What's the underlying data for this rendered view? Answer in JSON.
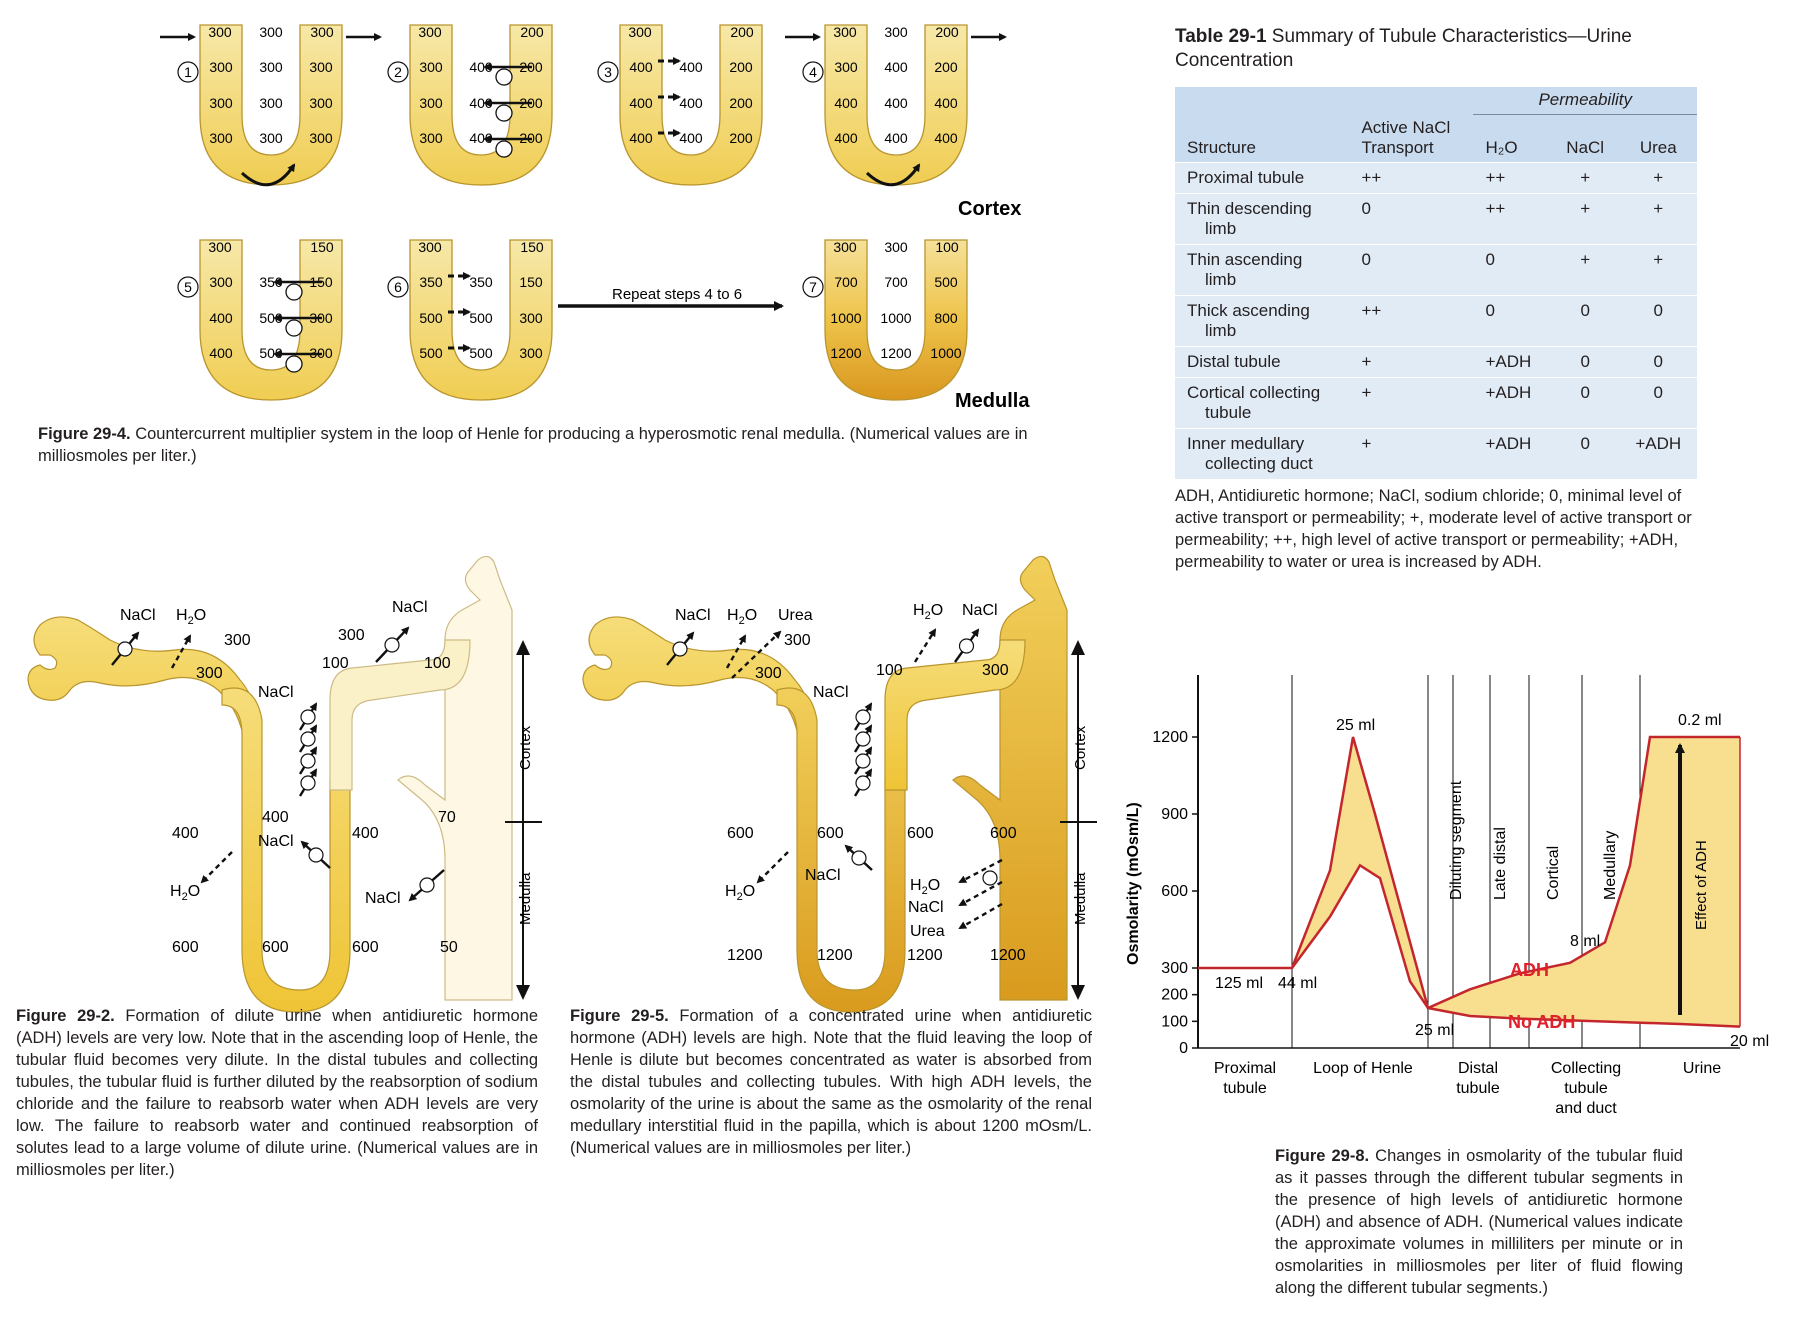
{
  "labels": {
    "cortex": "Cortex",
    "medulla": "Medulla",
    "repeat": "Repeat steps 4 to 6",
    "nacl": "NaCl",
    "h2o_main": "H",
    "h2o_sub": "2",
    "h2o_end": "O",
    "urea": "Urea",
    "cortex_small": "Cortex",
    "medulla_small": "Medulla"
  },
  "fig29_4": {
    "caption_bold": "Figure 29-4.",
    "caption": " Countercurrent multiplier system in the loop of Henle for producing a hyperosmotic renal medulla. (Numerical values are in milliosmoles per liter.)",
    "steps": [
      {
        "num": "1",
        "top": [
          "300",
          "300",
          "300"
        ],
        "left": [
          "300",
          "300",
          "300"
        ],
        "mid": [
          "300",
          "300",
          "300"
        ],
        "right": [
          "300",
          "300",
          "300"
        ]
      },
      {
        "num": "2",
        "top": [
          "300",
          "",
          "200"
        ],
        "left": [
          "300",
          "300",
          "300"
        ],
        "mid": [
          "400",
          "400",
          "400"
        ],
        "right": [
          "200",
          "200",
          "200"
        ]
      },
      {
        "num": "3",
        "top": [
          "300",
          "",
          "200"
        ],
        "left": [
          "400",
          "400",
          "400"
        ],
        "mid": [
          "400",
          "400",
          "400"
        ],
        "right": [
          "200",
          "200",
          "200"
        ]
      },
      {
        "num": "4",
        "top": [
          "300",
          "300",
          "200"
        ],
        "left": [
          "300",
          "400",
          "400"
        ],
        "mid": [
          "400",
          "400",
          "400"
        ],
        "right": [
          "200",
          "400",
          "400"
        ]
      },
      {
        "num": "5",
        "top": [
          "300",
          "",
          "150"
        ],
        "left": [
          "300",
          "400",
          "400"
        ],
        "mid": [
          "350",
          "500",
          "500"
        ],
        "right": [
          "150",
          "300",
          "300"
        ]
      },
      {
        "num": "6",
        "top": [
          "300",
          "",
          "150"
        ],
        "left": [
          "350",
          "500",
          "500"
        ],
        "mid": [
          "350",
          "500",
          "500"
        ],
        "right": [
          "150",
          "300",
          "300"
        ]
      },
      {
        "num": "7",
        "top": [
          "300",
          "300",
          "100"
        ],
        "left": [
          "700",
          "1000",
          "1200"
        ],
        "mid": [
          "700",
          "1000",
          "1200"
        ],
        "right": [
          "500",
          "800",
          "1000"
        ]
      }
    ]
  },
  "fig29_2": {
    "caption_bold": "Figure 29-2.",
    "caption": " Formation of dilute urine when antidiuretic hormone (ADH) levels are very low. Note that in the ascending loop of Henle, the tubular fluid becomes very dilute. In the distal tubules and collecting tubules, the tubular fluid is further diluted by the reabsorption of sodium chloride and the failure to reabsorb water when ADH levels are very low. The failure to reabsorb water and continued reabsorption of solutes lead to a large volume of dilute urine. (Numerical values are in milliosmoles per liter.)",
    "values": {
      "a": "300",
      "b": "300",
      "c": "300",
      "d": "100",
      "e": "100",
      "f": "400",
      "g": "400",
      "h": "400",
      "i": "70",
      "j": "600",
      "k": "600",
      "l": "600",
      "m": "50"
    }
  },
  "fig29_5": {
    "caption_bold": "Figure 29-5.",
    "caption": " Formation of a concentrated urine when antidiuretic hormone (ADH) levels are high. Note that the fluid leaving the loop of Henle is dilute but becomes concentrated as water is absorbed from the distal tubules and collecting tubules. With high ADH levels, the osmolarity of the urine is about the same as the osmolarity of the renal medullary interstitial fluid in the papilla, which is about 1200 mOsm/L. (Numerical values are in milliosmoles per liter.)",
    "values": {
      "a": "300",
      "b": "300",
      "c": "100",
      "d": "300",
      "e": "600",
      "f": "600",
      "g": "600",
      "h": "600",
      "i": "1200",
      "j": "1200",
      "k": "1200",
      "l": "1200"
    }
  },
  "table": {
    "title_bold": "Table 29-1",
    "title": "  Summary of Tubule Characteristics—Urine Concentration",
    "permeability": "Permeability",
    "col_structure": "Structure",
    "col_active": "Active NaCl Transport",
    "col_h2o": "H₂O",
    "col_nacl": "NaCl",
    "col_urea": "Urea",
    "rows": [
      {
        "name": "Proximal tubule",
        "name2": "",
        "active": "++",
        "h2o": "++",
        "nacl": "+",
        "urea": "+"
      },
      {
        "name": "Thin descending",
        "name2": "limb",
        "active": "0",
        "h2o": "++",
        "nacl": "+",
        "urea": "+"
      },
      {
        "name": "Thin ascending",
        "name2": "limb",
        "active": "0",
        "h2o": "0",
        "nacl": "+",
        "urea": "+"
      },
      {
        "name": "Thick ascending",
        "name2": "limb",
        "active": "++",
        "h2o": "0",
        "nacl": "0",
        "urea": "0"
      },
      {
        "name": "Distal tubule",
        "name2": "",
        "active": "+",
        "h2o": "+ADH",
        "nacl": "0",
        "urea": "0"
      },
      {
        "name": "Cortical collecting",
        "name2": "tubule",
        "active": "+",
        "h2o": "+ADH",
        "nacl": "0",
        "urea": "0"
      },
      {
        "name": "Inner medullary",
        "name2": "collecting duct",
        "active": "+",
        "h2o": "+ADH",
        "nacl": "0",
        "urea": "+ADH"
      }
    ],
    "note": "ADH, Antidiuretic hormone; NaCl, sodium chloride; 0, minimal level of active transport or permeability; +, moderate level of active transport or permeability; ++, high level of active transport or permeability; +ADH, permeability to water or urea is increased by ADH."
  },
  "fig29_8": {
    "caption_bold": "Figure 29-8.",
    "caption": " Changes in osmolarity of the tubular fluid as it passes through the different tubular segments in the presence of high levels of antidiuretic hormone (ADH) and absence of ADH. (Numerical values indicate the approximate volumes in milliliters per minute or in osmolarities in milliosmoles per liter of fluid flowing along the different tubular segments.)",
    "ylabel": "Osmolarity (mOsm/L)",
    "yticks": [
      "1200",
      "900",
      "600",
      "300",
      "200",
      "100",
      "0"
    ],
    "segments": [
      "Proximal tubule",
      "Loop of Henle",
      "Distal tubule",
      "Collecting tubule and duct",
      "Urine"
    ],
    "vlabels": [
      "Diluting segment",
      "Late distal",
      "Cortical",
      "Medullary"
    ],
    "vol": {
      "v125": "125 ml",
      "v44": "44 ml",
      "v25top": "25 ml",
      "v25bot": "25 ml",
      "v8": "8 ml",
      "v02": "0.2 ml",
      "v20": "20 ml"
    },
    "adh": "ADH",
    "noadh": "No ADH",
    "effect": "Effect of ADH",
    "colors": {
      "curve": "#c4262e",
      "fill": "#f7df8f",
      "red": "#e0202a"
    }
  }
}
